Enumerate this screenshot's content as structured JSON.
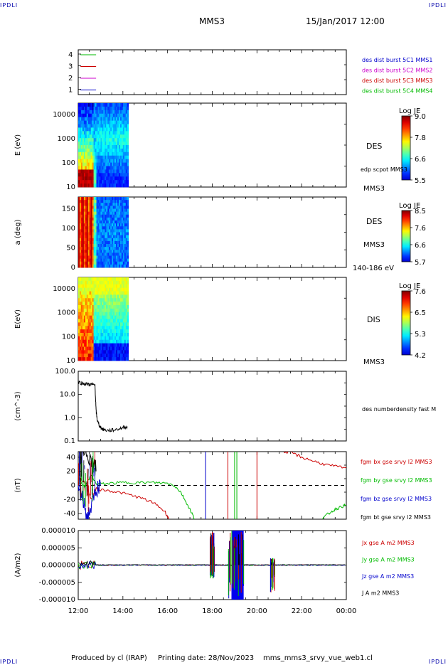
{
  "header": {
    "corner_label": "IPDLI",
    "spacecraft": "MMS3",
    "datetime": "15/Jan/2017 12:00"
  },
  "footer": {
    "produced_by": "Produced by cl (IRAP)",
    "printing_date": "Printing date: 28/Nov/2023",
    "file_name": "mms_mms3_srvy_vue_web1.cl"
  },
  "chart_data": [
    {
      "type": "line",
      "panel": "spacecraft-lines",
      "yticks": [
        "4",
        "3",
        "2",
        "1"
      ],
      "legend": [
        {
          "name": "des dist burst 5C1 MMS1",
          "color": "#0000cc"
        },
        {
          "name": "des dist burst 5C2 MMS2",
          "color": "#cc00cc"
        },
        {
          "name": "des dist burst 5C3 MMS3",
          "color": "#cc0000"
        },
        {
          "name": "des dist burst 5C4 MMS4",
          "color": "#00bb00"
        }
      ],
      "marks": [
        {
          "sc": 4,
          "color": "#00bb00",
          "x": [
            12.1,
            12.8
          ]
        },
        {
          "sc": 3,
          "color": "#cc0000",
          "x": [
            12.1,
            12.8
          ]
        },
        {
          "sc": 2,
          "color": "#cc00cc",
          "x": [
            12.1,
            12.8
          ]
        },
        {
          "sc": 1,
          "color": "#0000cc",
          "x": [
            12.1,
            12.8
          ]
        }
      ]
    },
    {
      "type": "heatmap",
      "panel": "des-energy",
      "ylabel": "E (eV)",
      "yscale": "log",
      "ylim": [
        10,
        30000
      ],
      "yticks": [
        "10000",
        "1000",
        "100",
        "10"
      ],
      "x_range": [
        12.0,
        14.25
      ],
      "colorbar": {
        "title": "Log JE",
        "ticks": [
          "9.0",
          "7.8",
          "6.6",
          "5.5"
        ],
        "range": [
          5.5,
          9.0
        ]
      },
      "labels": [
        "DES",
        "edp scpot MMS3",
        "MMS3"
      ]
    },
    {
      "type": "heatmap",
      "panel": "des-pitch",
      "ylabel": "a (deg)",
      "ylim": [
        0,
        180
      ],
      "yticks": [
        "150",
        "100",
        "50",
        "0"
      ],
      "x_range": [
        12.0,
        14.25
      ],
      "colorbar": {
        "title": "Log JE",
        "ticks": [
          "8.5",
          "7.6",
          "6.6",
          "5.7"
        ],
        "range": [
          5.7,
          8.5
        ]
      },
      "labels": [
        "DES",
        "MMS3",
        "140-186 eV"
      ]
    },
    {
      "type": "heatmap",
      "panel": "dis-energy",
      "ylabel": "E(eV)",
      "yscale": "log",
      "ylim": [
        10,
        30000
      ],
      "yticks": [
        "10000",
        "1000",
        "100",
        "10"
      ],
      "x_range": [
        12.0,
        14.25
      ],
      "colorbar": {
        "title": "Log JE",
        "ticks": [
          "7.6",
          "6.5",
          "5.3",
          "4.2"
        ],
        "range": [
          4.2,
          7.6
        ]
      },
      "labels": [
        "DIS",
        "MMS3"
      ]
    },
    {
      "type": "line",
      "panel": "density",
      "ylabel": "(cm^-3)",
      "yscale": "log",
      "ylim": [
        0.1,
        100
      ],
      "yticks": [
        "100.0",
        "10.0",
        "1.0",
        "0.1"
      ],
      "series": [
        {
          "name": "des numberdensity fast M",
          "color": "#000000",
          "x": [
            12.0,
            12.2,
            12.4,
            12.6,
            12.75,
            12.8,
            12.85,
            12.95,
            13.1,
            13.3,
            13.6,
            13.9,
            14.2
          ],
          "y": [
            35,
            30,
            28,
            27,
            25,
            2.0,
            0.8,
            0.45,
            0.32,
            0.28,
            0.3,
            0.35,
            0.42
          ]
        }
      ]
    },
    {
      "type": "line",
      "panel": "magnetic-field",
      "ylabel": "(nT)",
      "ylim": [
        -48,
        48
      ],
      "yticks": [
        "40",
        "20",
        "0",
        "-20",
        "-40"
      ],
      "series": [
        {
          "name": "fgm bx gse srvy l2 MMS3",
          "color": "#cc0000",
          "x": [
            12.0,
            12.3,
            12.6,
            12.8,
            13.0,
            13.5,
            14.0,
            14.5,
            15.0,
            15.5,
            15.9,
            16.05
          ],
          "y": [
            10,
            5,
            -20,
            -5,
            -6,
            -8,
            -11,
            -15,
            -20,
            -27,
            -38,
            -48
          ],
          "x2": [
            21.2,
            21.6,
            22.0,
            22.5,
            23.0,
            23.5,
            24.0
          ],
          "y2": [
            48,
            46,
            40,
            35,
            30,
            27,
            25
          ]
        },
        {
          "name": "fgm by gse srvy l2 MMS3",
          "color": "#00bb00",
          "x": [
            12.0,
            12.3,
            12.6,
            12.8,
            13.0,
            13.5,
            14.0,
            14.5,
            15.0,
            15.5,
            16.0,
            16.3,
            16.6,
            16.85,
            17.1,
            17.2
          ],
          "y": [
            5,
            0,
            15,
            2,
            2,
            3,
            4,
            4,
            4,
            4,
            3,
            0,
            -10,
            -25,
            -40,
            -48
          ],
          "x2": [
            22.9,
            23.2,
            23.5,
            23.8,
            24.0
          ],
          "y2": [
            -48,
            -40,
            -34,
            -30,
            -28
          ]
        },
        {
          "name": "fgm bz gse srvy l2 MMS3",
          "color": "#0000cc",
          "x": [
            12.0,
            12.2,
            12.4,
            12.6,
            12.8,
            13.0
          ],
          "y": [
            -5,
            -20,
            -45,
            -30,
            -5,
            0
          ]
        },
        {
          "name": "fgm bt gse srvy l2 MMS3",
          "color": "#000000",
          "x": [
            12.0,
            12.2,
            12.4,
            12.6,
            12.8
          ],
          "y": [
            45,
            40,
            48,
            35,
            20
          ]
        }
      ],
      "spikes": [
        {
          "x": 17.7,
          "color": "#0000cc"
        },
        {
          "x": 18.7,
          "color": "#cc0000"
        },
        {
          "x": 19.0,
          "color": "#00bb00"
        },
        {
          "x": 19.1,
          "color": "#00bb00"
        },
        {
          "x": 20.0,
          "color": "#cc0000"
        }
      ],
      "zero_line": true
    },
    {
      "type": "line",
      "panel": "current-density",
      "ylabel": "(A/m2)",
      "ylim": [
        -1e-05,
        1e-05
      ],
      "yticks": [
        "0.000010",
        "0.000005",
        "0.000000",
        "-0.000005",
        "-0.000010"
      ],
      "series": [
        {
          "name": "Jx gse A m2 MMS3",
          "color": "#cc0000"
        },
        {
          "name": "Jy gse A m2 MMS3",
          "color": "#00bb00"
        },
        {
          "name": "Jz gse A m2 MMS3",
          "color": "#0000cc"
        },
        {
          "name": "J A m2 MMS3",
          "color": "#000000"
        }
      ],
      "bursts": [
        {
          "x": [
            17.9,
            18.1
          ],
          "min": -4e-06,
          "max": 1e-05
        },
        {
          "x": [
            18.7,
            19.5
          ],
          "min": -1e-05,
          "max": 1e-05
        },
        {
          "x": [
            20.6,
            20.8
          ],
          "min": -8e-06,
          "max": 2e-06
        }
      ]
    }
  ],
  "time_axis": {
    "ticks": [
      "12:00",
      "14:00",
      "16:00",
      "18:00",
      "20:00",
      "22:00",
      "00:00"
    ],
    "range": [
      12.0,
      24.0
    ]
  }
}
